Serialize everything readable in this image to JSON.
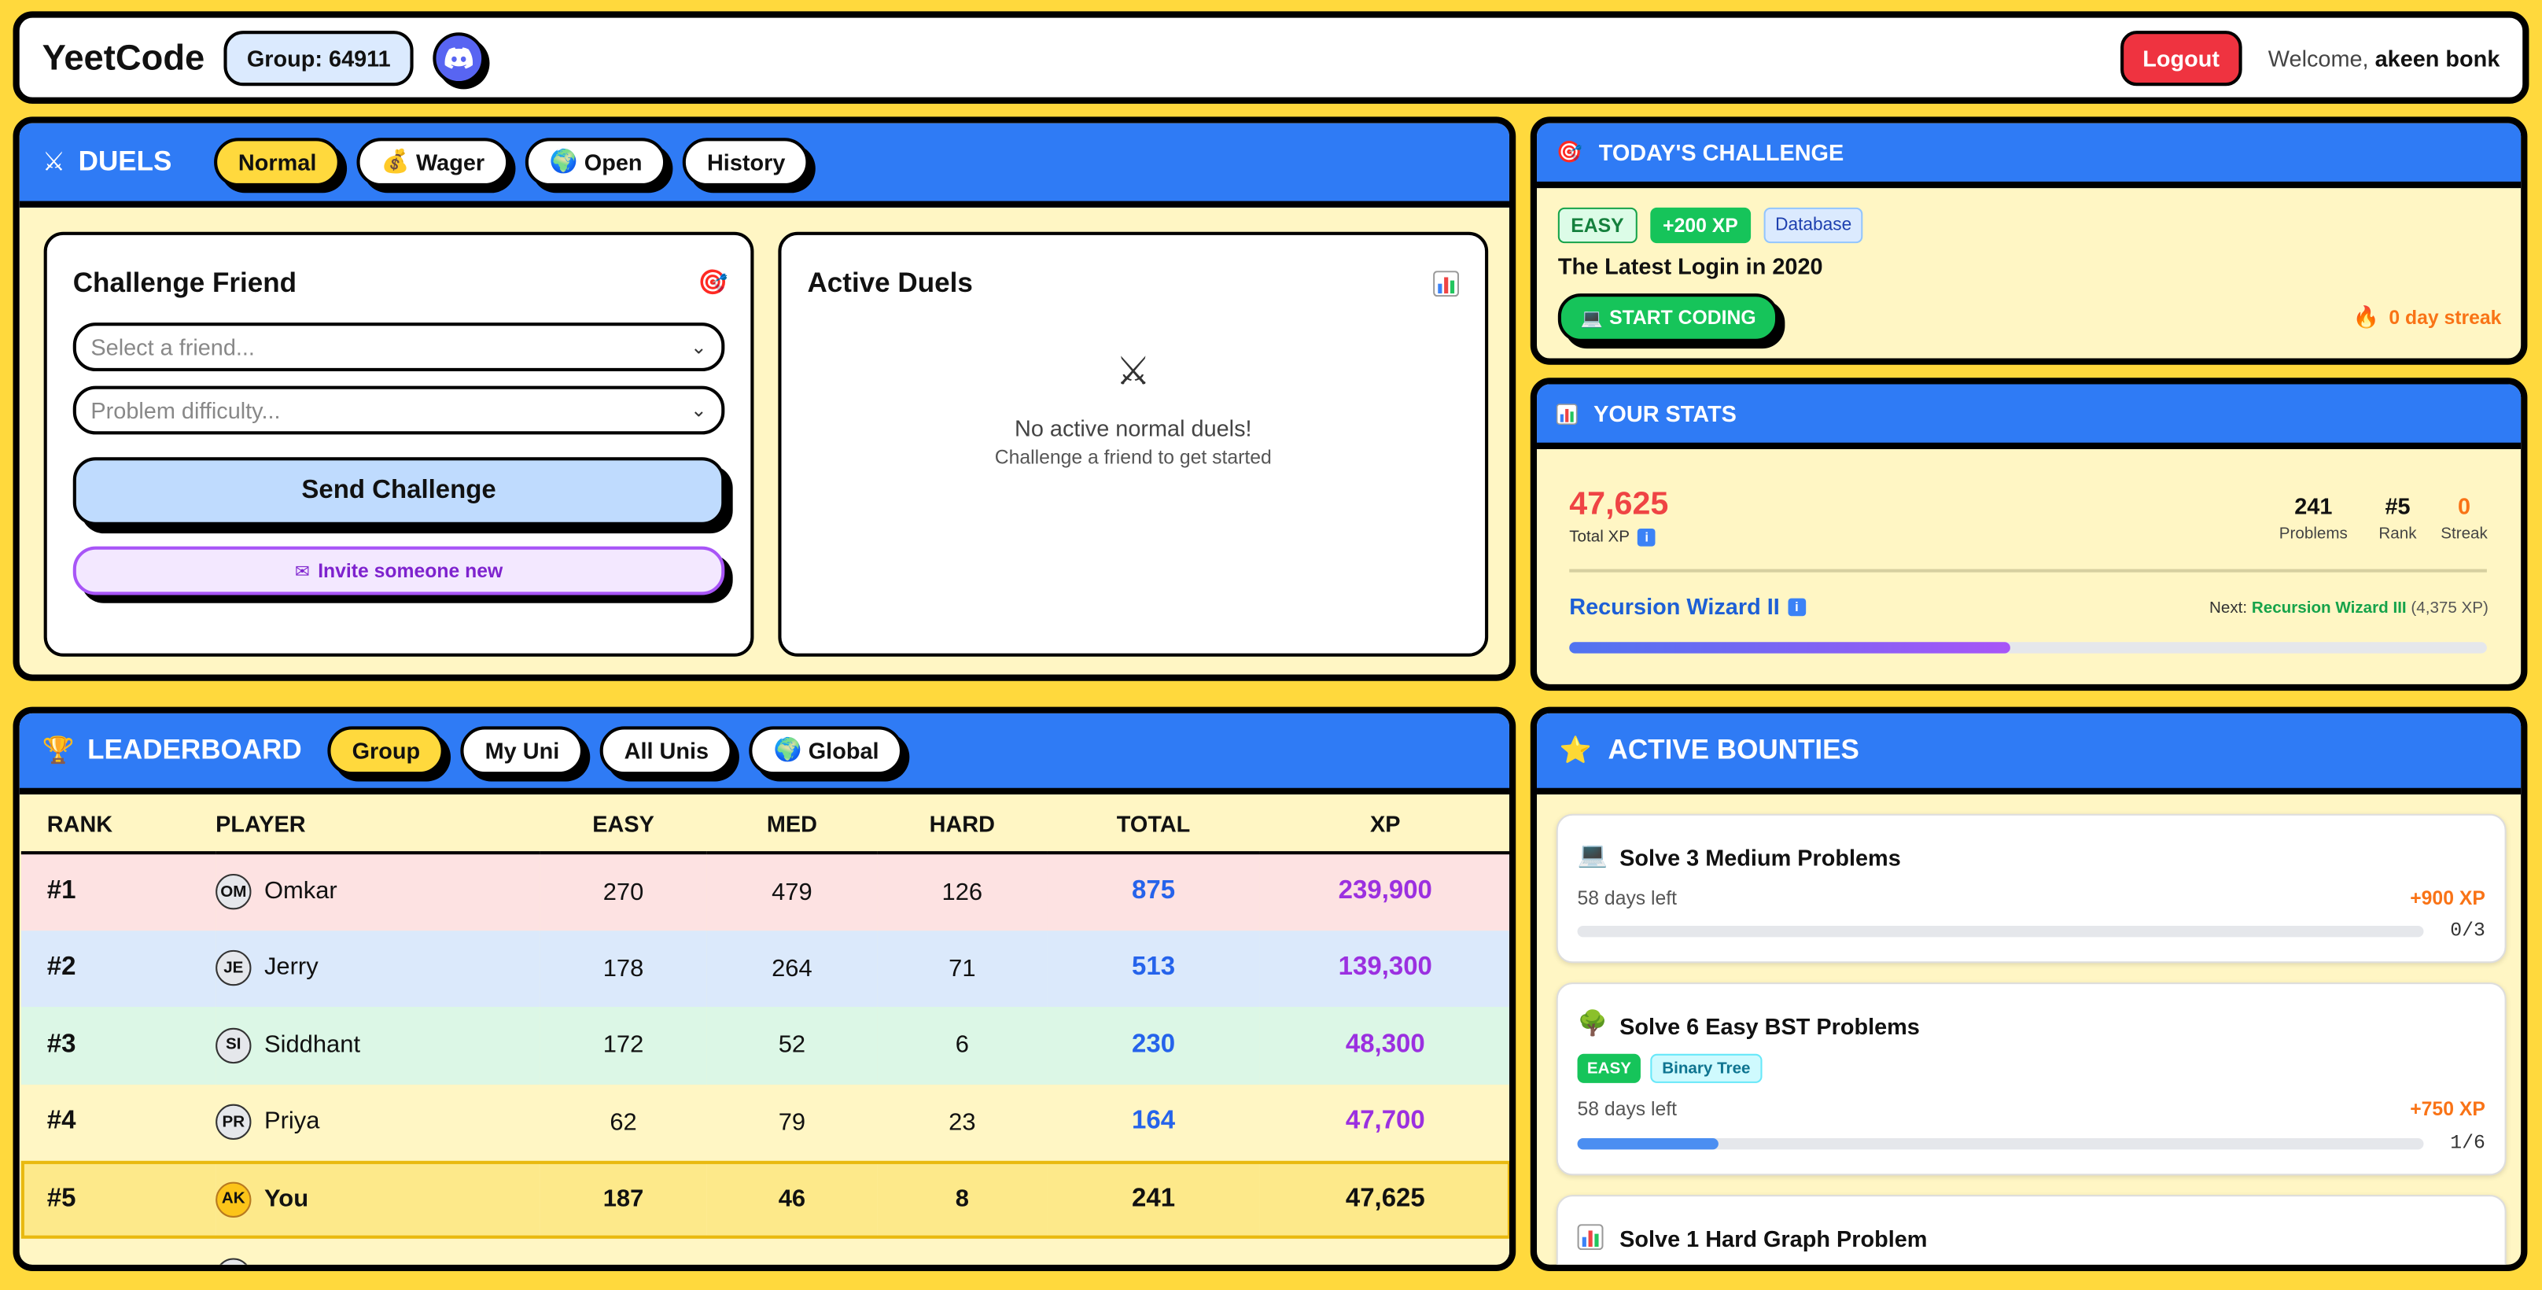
{
  "header": {
    "brand": "YeetCode",
    "group_label": "Group: 64911",
    "logout": "Logout",
    "welcome_prefix": "Welcome,",
    "user_name": "akeen bonk"
  },
  "duels": {
    "title": "DUELS",
    "tabs": [
      {
        "label": "Normal",
        "icon": "crossed-swords"
      },
      {
        "label": "Wager",
        "icon": "money-bag"
      },
      {
        "label": "Open",
        "icon": "globe"
      },
      {
        "label": "History",
        "icon": ""
      }
    ],
    "challenge": {
      "title": "Challenge Friend",
      "friend_placeholder": "Select a friend...",
      "difficulty_placeholder": "Problem difficulty...",
      "send": "Send Challenge",
      "invite": "Invite someone new"
    },
    "active": {
      "title": "Active Duels",
      "empty_title": "No active normal duels!",
      "empty_sub": "Challenge a friend to get started"
    }
  },
  "todays_challenge": {
    "header": "TODAY'S CHALLENGE",
    "difficulty": "EASY",
    "xp": "+200 XP",
    "topic": "Database",
    "problem": "The Latest Login in 2020",
    "start": "START CODING",
    "streak": "0 day streak"
  },
  "stats": {
    "header": "YOUR STATS",
    "total_xp": "47,625",
    "total_xp_label": "Total XP",
    "problems": "241",
    "problems_label": "Problems",
    "rank": "#5",
    "rank_label": "Rank",
    "streak": "0",
    "streak_label": "Streak",
    "level": "Recursion Wizard II",
    "next_label": "Next:",
    "next_level": "Recursion Wizard III",
    "next_xp": "(4,375 XP)",
    "level_progress": 0.48
  },
  "leaderboard": {
    "title": "LEADERBOARD",
    "tabs": [
      {
        "label": "Group",
        "icon": ""
      },
      {
        "label": "My Uni",
        "icon": ""
      },
      {
        "label": "All Unis",
        "icon": ""
      },
      {
        "label": "Global",
        "icon": "globe"
      }
    ],
    "columns": [
      "RANK",
      "PLAYER",
      "EASY",
      "MED",
      "HARD",
      "TOTAL",
      "XP"
    ],
    "rows": [
      {
        "rank": "#1",
        "initials": "OM",
        "name": "Omkar",
        "easy": "270",
        "med": "479",
        "hard": "126",
        "total": "875",
        "xp": "239,900",
        "bg": "#fde2e2"
      },
      {
        "rank": "#2",
        "initials": "JE",
        "name": "Jerry",
        "easy": "178",
        "med": "264",
        "hard": "71",
        "total": "513",
        "xp": "139,300",
        "bg": "#dbe9fb"
      },
      {
        "rank": "#3",
        "initials": "SI",
        "name": "Siddhant",
        "easy": "172",
        "med": "52",
        "hard": "6",
        "total": "230",
        "xp": "48,300",
        "bg": "#dcf7e6"
      },
      {
        "rank": "#4",
        "initials": "PR",
        "name": "Priya",
        "easy": "62",
        "med": "79",
        "hard": "23",
        "total": "164",
        "xp": "47,700",
        "bg": "#fff6c4"
      },
      {
        "rank": "#5",
        "initials": "AK",
        "name": "You",
        "easy": "187",
        "med": "46",
        "hard": "8",
        "total": "241",
        "xp": "47,625",
        "bg": "#fde98a",
        "me": true
      }
    ]
  },
  "bounties": {
    "header": "ACTIVE BOUNTIES",
    "items": [
      {
        "title": "Solve 3 Medium Problems",
        "icon": "laptop",
        "days": "58 days left",
        "reward": "+900 XP",
        "progress": "0/3",
        "fraction": 0
      },
      {
        "title": "Solve 6 Easy BST Problems",
        "icon": "tree",
        "tag1": "EASY",
        "tag2": "Binary Tree",
        "days": "58 days left",
        "reward": "+750 XP",
        "progress": "1/6",
        "fraction": 0.1667
      },
      {
        "title": "Solve 1 Hard Graph Problem",
        "icon": "bar-chart"
      }
    ]
  },
  "colors": {
    "background": "#ffd93d",
    "panel_header": "#2f7bf5",
    "panel_body": "#fff6c4",
    "logout": "#ef3340",
    "xp_purple": "#9b30e0",
    "total_blue": "#2563eb",
    "easy_green": "#16c45a"
  }
}
